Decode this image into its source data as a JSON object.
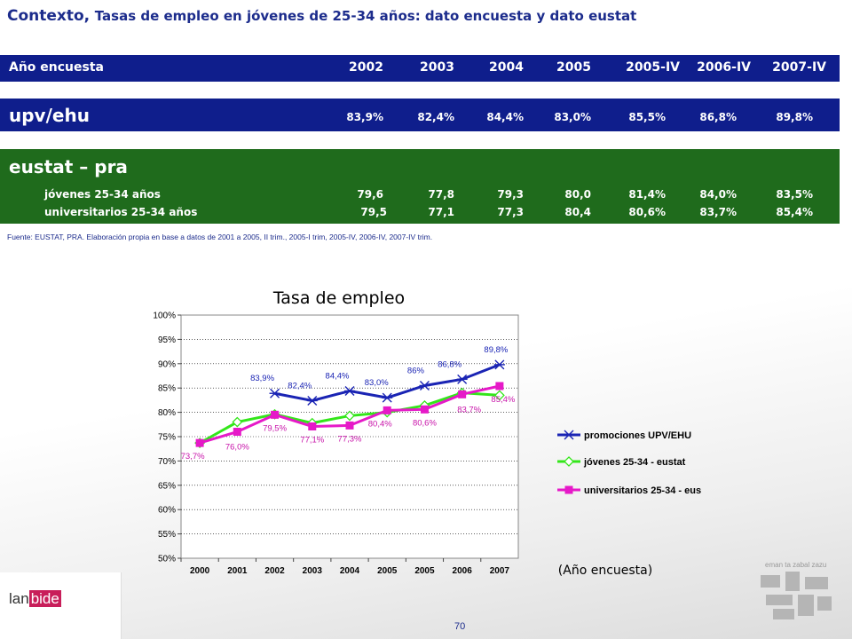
{
  "title": {
    "prefix": "Contexto,",
    "main": "Tasas de empleo en jóvenes de 25-34 años: dato encuesta y dato eustat"
  },
  "table": {
    "year_label": "Año encuesta",
    "years": [
      "2002",
      "2003",
      "2004",
      "2005",
      "2005-IV",
      "2006-IV",
      "2007-IV"
    ],
    "upv": {
      "label": "upv/ehu",
      "values": [
        "83,9%",
        "82,4%",
        "84,4%",
        "83,0%",
        "85,5%",
        "86,8%",
        "89,8%"
      ]
    },
    "eustat": {
      "label": "eustat – pra",
      "rows": [
        {
          "label": "jóvenes 25-34 años",
          "values": [
            "79,6",
            "77,8",
            "79,3",
            "80,0",
            "81,4%",
            "84,0%",
            "83,5%"
          ]
        },
        {
          "label": "universitarios 25-34 años",
          "values": [
            "79,5",
            "77,1",
            "77,3",
            "80,4",
            "80,6%",
            "83,7%",
            "85,4%"
          ]
        }
      ]
    }
  },
  "source": "Fuente: EUSTAT, PRA. Elaboración propia en base a datos de 2001 a 2005, II trim., 2005-I trim, 2005-IV, 2006-IV, 2007-IV trim.",
  "chart_data": {
    "type": "line",
    "title": "Tasa de empleo",
    "xlabel": "(Año encuesta)",
    "categories": [
      "2000",
      "2001",
      "2002",
      "2003",
      "2004",
      "2005",
      "2005",
      "2006",
      "2007"
    ],
    "y_ticks": [
      "50%",
      "55%",
      "60%",
      "65%",
      "70%",
      "75%",
      "80%",
      "85%",
      "90%",
      "95%",
      "100%"
    ],
    "ylim": [
      50,
      100
    ],
    "legend_position": "right",
    "series": [
      {
        "name": "promociones UPV/EHU",
        "color": "#1a24b4",
        "marker": "asterisk",
        "values": [
          null,
          null,
          83.9,
          82.4,
          84.4,
          83.0,
          85.5,
          86.8,
          89.8
        ],
        "labels": [
          null,
          null,
          "83,9%",
          "82,4%",
          "84,4%",
          "83,0%",
          "86%",
          "86,8%",
          "89,8%"
        ]
      },
      {
        "name": "jóvenes 25-34 - eustat",
        "color": "#33e61a",
        "marker": "diamond",
        "values": [
          73.7,
          78.0,
          79.6,
          77.8,
          79.3,
          80.0,
          81.4,
          84.0,
          83.5
        ],
        "labels": [
          null,
          null,
          null,
          null,
          null,
          null,
          null,
          null,
          null
        ]
      },
      {
        "name": "universitarios 25-34 - eustat",
        "color": "#e619c8",
        "marker": "square",
        "values": [
          73.7,
          76.0,
          79.5,
          77.1,
          77.3,
          80.4,
          80.6,
          83.7,
          85.4
        ],
        "labels": [
          "73,7%",
          "76,0%",
          "79,5%",
          "77,1%",
          "77,3%",
          "80,4%",
          "80,6%",
          "83,7%",
          "85,4%"
        ]
      }
    ]
  },
  "footer": {
    "page_number": "70",
    "logo_left_a": "lan",
    "logo_left_b": "bide",
    "logo_right_text": "eman ta zabal zazu"
  }
}
